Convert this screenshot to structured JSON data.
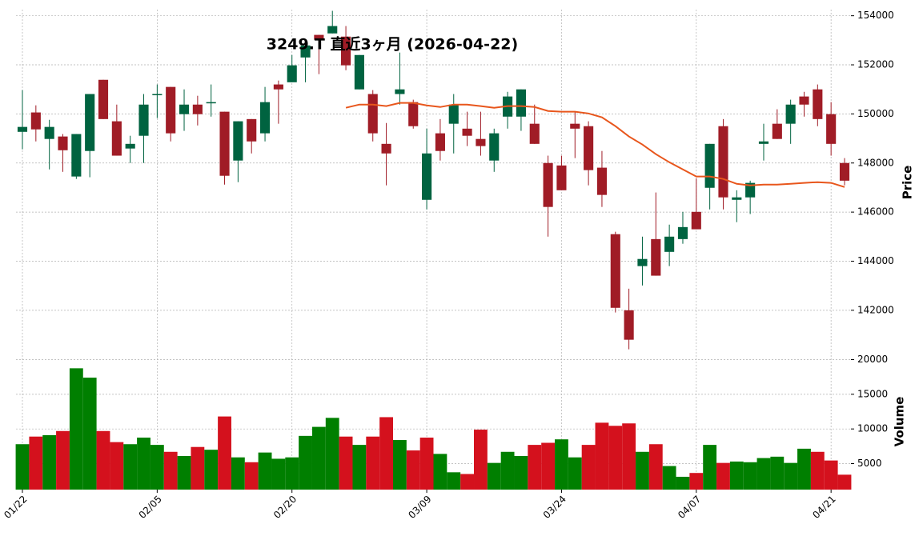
{
  "chart_data": {
    "type": "candlestick",
    "title": "3249.T  直近3ヶ月  (2026-04-22)",
    "ylabel": "Price",
    "y2label": "Volume",
    "categories": [
      "01/22",
      null,
      null,
      null,
      null,
      null,
      null,
      null,
      null,
      null,
      "02/05",
      null,
      null,
      null,
      null,
      null,
      null,
      null,
      null,
      null,
      "02/20",
      null,
      null,
      null,
      null,
      null,
      null,
      null,
      null,
      null,
      "03/09",
      null,
      null,
      null,
      null,
      null,
      null,
      null,
      null,
      null,
      "03/24",
      null,
      null,
      null,
      null,
      null,
      null,
      null,
      null,
      null,
      "04/07",
      null,
      null,
      null,
      null,
      null,
      null,
      null,
      null,
      null,
      "04/21",
      null
    ],
    "open": [
      149270,
      150060,
      148980,
      149080,
      147450,
      148490,
      151390,
      149700,
      148590,
      149110,
      150770,
      151100,
      149990,
      150380,
      150450,
      150090,
      148100,
      149790,
      149210,
      151200,
      151290,
      152300,
      153220,
      153280,
      153150,
      151000,
      150810,
      148780,
      150810,
      150480,
      146500,
      149210,
      149600,
      149400,
      148980,
      148100,
      149890,
      149890,
      149600,
      148000,
      147900,
      149600,
      149500,
      147810,
      145100,
      142000,
      143800,
      144900,
      144380,
      144900,
      146010,
      146990,
      149500,
      146500,
      146600,
      148780,
      149600,
      149600,
      150710,
      151000,
      149990,
      148000
    ],
    "high": [
      150970,
      150350,
      149760,
      149180,
      149180,
      150810,
      151390,
      150380,
      149110,
      150810,
      151200,
      151100,
      151000,
      150740,
      151200,
      150090,
      149700,
      149790,
      151100,
      151360,
      152400,
      152990,
      153220,
      154200,
      153580,
      152400,
      150970,
      149630,
      152500,
      150580,
      149400,
      149790,
      150810,
      150090,
      150090,
      149400,
      150900,
      151000,
      150380,
      148300,
      148300,
      150090,
      149700,
      148490,
      145200,
      142880,
      145000,
      146800,
      145490,
      146010,
      147380,
      148780,
      149790,
      146890,
      147280,
      149600,
      150190,
      150580,
      150900,
      151200,
      150480,
      148200
    ],
    "low": [
      148560,
      148880,
      147740,
      147640,
      147350,
      147420,
      149790,
      148300,
      148000,
      148000,
      149830,
      148880,
      149310,
      149530,
      149890,
      147120,
      147220,
      148390,
      148880,
      149600,
      151290,
      151290,
      151620,
      153280,
      151780,
      151000,
      148880,
      147090,
      150380,
      149400,
      146110,
      148100,
      148390,
      148690,
      148300,
      147640,
      149400,
      149310,
      148780,
      145000,
      146890,
      148200,
      147090,
      146210,
      141910,
      140410,
      143010,
      143410,
      143800,
      144710,
      145300,
      146110,
      146110,
      145590,
      145920,
      148100,
      148980,
      148780,
      149890,
      149500,
      148300,
      147090
    ],
    "close": [
      149470,
      149370,
      149470,
      148520,
      149180,
      150810,
      149790,
      148300,
      148780,
      150380,
      150810,
      149210,
      150380,
      149990,
      150480,
      147480,
      149700,
      148880,
      150480,
      151000,
      151980,
      152790,
      153020,
      153580,
      151980,
      152400,
      149210,
      148390,
      151000,
      149500,
      148390,
      148490,
      150380,
      149110,
      148690,
      149210,
      150710,
      151000,
      148780,
      146210,
      146890,
      149400,
      147710,
      146700,
      142100,
      140800,
      144090,
      143410,
      145000,
      145390,
      145300,
      148780,
      146600,
      146600,
      147190,
      148880,
      148980,
      150380,
      150380,
      149790,
      148780,
      147280
    ],
    "volume": [
      7800,
      8900,
      9100,
      9700,
      18750,
      17400,
      9700,
      8100,
      7800,
      8750,
      7700,
      6700,
      6100,
      7400,
      7000,
      11800,
      5900,
      5200,
      6600,
      5700,
      5900,
      9000,
      10300,
      11600,
      8900,
      7700,
      8900,
      11700,
      8400,
      6900,
      8750,
      6400,
      3750,
      3500,
      9900,
      5100,
      6700,
      6100,
      7700,
      8000,
      8500,
      5900,
      7700,
      10900,
      10450,
      10800,
      6700,
      7800,
      4650,
      3100,
      3650,
      7700,
      5100,
      5300,
      5200,
      5800,
      6000,
      5100,
      7150,
      6700,
      5450,
      3400
    ],
    "series": [
      {
        "values": [
          null,
          null,
          null,
          null,
          null,
          null,
          null,
          null,
          null,
          null,
          null,
          null,
          null,
          null,
          null,
          null,
          null,
          null,
          null,
          null,
          null,
          null,
          null,
          null,
          150250,
          150380,
          150380,
          150320,
          150450,
          150450,
          150350,
          150280,
          150380,
          150380,
          150320,
          150250,
          150320,
          150320,
          150280,
          150120,
          150090,
          150090,
          150020,
          149860,
          149500,
          149080,
          148750,
          148360,
          148030,
          147740,
          147450,
          147450,
          147350,
          147150,
          147090,
          147120,
          147120,
          147150,
          147190,
          147220,
          147190,
          147020
        ],
        "color": "#e8561c"
      }
    ],
    "up_color": "#006340",
    "down_color": "#a01c26",
    "volume_up_color": "#007f00",
    "volume_down_color": "#d4111d",
    "ylim": [
      140300,
      154250
    ],
    "yticks": [
      142000,
      144000,
      146000,
      148000,
      150000,
      152000,
      154000
    ],
    "y2lim": [
      1250,
      21100
    ],
    "y2ticks": [
      5000,
      10000,
      15000,
      20000
    ],
    "grid": true
  }
}
